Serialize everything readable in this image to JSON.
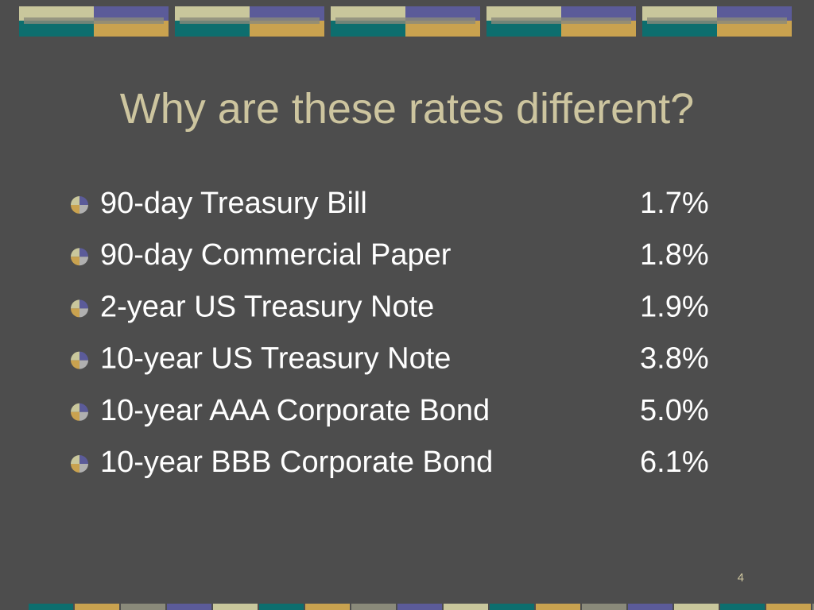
{
  "title": "Why are these rates different?",
  "items": [
    {
      "label": "90-day Treasury Bill",
      "rate": "1.7%"
    },
    {
      "label": "90-day Commercial Paper",
      "rate": "1.8%"
    },
    {
      "label": "2-year US Treasury Note",
      "rate": "1.9%"
    },
    {
      "label": "10-year US Treasury Note",
      "rate": "3.8%"
    },
    {
      "label": "10-year AAA Corporate Bond",
      "rate": "5.0%"
    },
    {
      "label": "10-year BBB Corporate Bond",
      "rate": "6.1%"
    }
  ],
  "page_number": "4"
}
